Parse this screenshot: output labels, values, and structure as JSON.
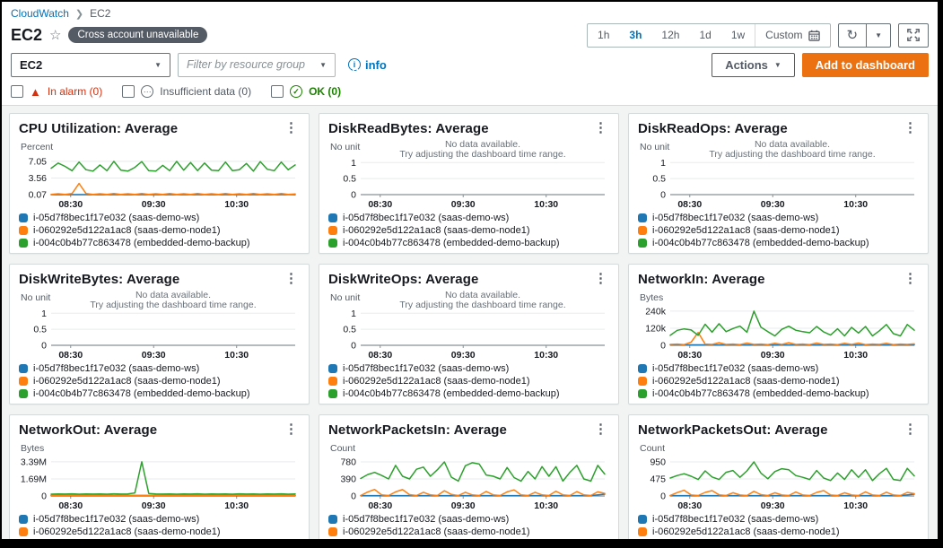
{
  "breadcrumb": {
    "root": "CloudWatch",
    "current": "EC2"
  },
  "header": {
    "title": "EC2",
    "badge": "Cross account unavailable"
  },
  "time_bar": {
    "options": [
      "1h",
      "3h",
      "12h",
      "1d",
      "1w"
    ],
    "selected": "3h",
    "custom_label": "Custom"
  },
  "toolbar": {
    "actions_label": "Actions",
    "add_label": "Add to dashboard"
  },
  "filter_bar": {
    "metric_select": "EC2",
    "resource_placeholder": "Filter by resource group",
    "info_label": "info"
  },
  "alarm_filters": {
    "in_alarm": "In alarm (0)",
    "insufficient": "Insufficient data (0)",
    "ok": "OK (0)"
  },
  "colors": {
    "accent_orange": "#ec7211",
    "link_blue": "#0073bb",
    "alarm_red": "#d13212",
    "ok_green": "#1d8102",
    "series_blue": "#1f77b4",
    "series_orange": "#ff7f0e",
    "series_green": "#2ca02c"
  },
  "legend": [
    {
      "label": "i-05d7f8bec1f17e032 (saas-demo-ws)",
      "color": "#1f77b4"
    },
    {
      "label": "i-060292e5d122a1ac8 (saas-demo-node1)",
      "color": "#ff7f0e"
    },
    {
      "label": "i-004c0b4b77c863478 (embedded-demo-backup)",
      "color": "#2ca02c"
    }
  ],
  "no_data_message": {
    "line1": "No data available.",
    "line2": "Try adjusting the dashboard time range."
  },
  "xaxis": {
    "ticks": [
      "08:30",
      "09:30",
      "10:30"
    ]
  },
  "chart_data": [
    {
      "type": "line",
      "title": "CPU Utilization: Average",
      "unit": "Percent",
      "no_data": false,
      "yticks": [
        {
          "label": "7.05",
          "value": 7.05
        },
        {
          "label": "3.56",
          "value": 3.56
        },
        {
          "label": "0.07",
          "value": 0.07
        }
      ],
      "ymin": 0.07,
      "ymax": 7.6,
      "xticks": [
        "08:30",
        "09:30",
        "10:30"
      ],
      "series": [
        {
          "name": "i-05d7f8bec1f17e032 (saas-demo-ws)",
          "color": "#1f77b4",
          "values": [
            0.07,
            0.07
          ]
        },
        {
          "name": "i-060292e5d122a1ac8 (saas-demo-node1)",
          "color": "#ff7f0e",
          "values": [
            0.1,
            0.25,
            0.1,
            0.3,
            2.4,
            0.3,
            0.1,
            0.25,
            0.1,
            0.3,
            0.1,
            0.25,
            0.1,
            0.3,
            0.1,
            0.25,
            0.1,
            0.3,
            0.1,
            0.25,
            0.1,
            0.3,
            0.1,
            0.25,
            0.1,
            0.3,
            0.1,
            0.25,
            0.1,
            0.3,
            0.1,
            0.25,
            0.1,
            0.3,
            0.1,
            0.2
          ]
        },
        {
          "name": "i-004c0b4b77c863478 (embedded-demo-backup)",
          "color": "#2ca02c",
          "values": [
            5.6,
            6.7,
            6.0,
            5.1,
            6.9,
            5.3,
            5.0,
            6.3,
            5.1,
            7.05,
            5.2,
            5.0,
            5.8,
            7.0,
            5.1,
            5.0,
            6.2,
            5.1,
            7.05,
            5.2,
            6.8,
            5.1,
            6.7,
            5.2,
            5.1,
            6.9,
            5.1,
            5.3,
            6.6,
            5.0,
            7.0,
            5.4,
            5.1,
            6.9,
            5.3,
            6.3
          ]
        }
      ]
    },
    {
      "type": "line",
      "title": "DiskReadBytes: Average",
      "unit": "No unit",
      "no_data": true,
      "yticks": [
        {
          "label": "1",
          "value": 1
        },
        {
          "label": "0.5",
          "value": 0.5
        },
        {
          "label": "0",
          "value": 0
        }
      ],
      "ymin": 0,
      "ymax": 1.12,
      "xticks": [
        "08:30",
        "09:30",
        "10:30"
      ],
      "series": []
    },
    {
      "type": "line",
      "title": "DiskReadOps: Average",
      "unit": "No unit",
      "no_data": true,
      "yticks": [
        {
          "label": "1",
          "value": 1
        },
        {
          "label": "0.5",
          "value": 0.5
        },
        {
          "label": "0",
          "value": 0
        }
      ],
      "ymin": 0,
      "ymax": 1.12,
      "xticks": [
        "08:30",
        "09:30",
        "10:30"
      ],
      "series": []
    },
    {
      "type": "line",
      "title": "DiskWriteBytes: Average",
      "unit": "No unit",
      "no_data": true,
      "yticks": [
        {
          "label": "1",
          "value": 1
        },
        {
          "label": "0.5",
          "value": 0.5
        },
        {
          "label": "0",
          "value": 0
        }
      ],
      "ymin": 0,
      "ymax": 1.12,
      "xticks": [
        "08:30",
        "09:30",
        "10:30"
      ],
      "series": []
    },
    {
      "type": "line",
      "title": "DiskWriteOps: Average",
      "unit": "No unit",
      "no_data": true,
      "yticks": [
        {
          "label": "1",
          "value": 1
        },
        {
          "label": "0.5",
          "value": 0.5
        },
        {
          "label": "0",
          "value": 0
        }
      ],
      "ymin": 0,
      "ymax": 1.12,
      "xticks": [
        "08:30",
        "09:30",
        "10:30"
      ],
      "series": []
    },
    {
      "type": "line",
      "title": "NetworkIn: Average",
      "unit": "Bytes",
      "no_data": false,
      "yticks": [
        {
          "label": "240k",
          "value": 240
        },
        {
          "label": "120k",
          "value": 120
        },
        {
          "label": "0",
          "value": 0
        }
      ],
      "ymin": 0,
      "ymax": 252,
      "xticks": [
        "08:30",
        "09:30",
        "10:30"
      ],
      "series": [
        {
          "name": "i-05d7f8bec1f17e032 (saas-demo-ws)",
          "color": "#1f77b4",
          "values": [
            3,
            3
          ]
        },
        {
          "name": "i-060292e5d122a1ac8 (saas-demo-node1)",
          "color": "#ff7f0e",
          "values": [
            6,
            9,
            5,
            22,
            90,
            9,
            6,
            18,
            6,
            9,
            5,
            16,
            6,
            9,
            5,
            14,
            6,
            18,
            6,
            9,
            5,
            16,
            6,
            9,
            5,
            14,
            6,
            16,
            5,
            9,
            6,
            14,
            5,
            9,
            6,
            10
          ]
        },
        {
          "name": "i-004c0b4b77c863478 (embedded-demo-backup)",
          "color": "#2ca02c",
          "values": [
            70,
            105,
            115,
            108,
            70,
            148,
            92,
            152,
            96,
            118,
            135,
            92,
            240,
            128,
            96,
            66,
            112,
            134,
            106,
            96,
            88,
            132,
            94,
            72,
            116,
            66,
            126,
            86,
            132,
            66,
            102,
            146,
            82,
            66,
            146,
            106
          ]
        }
      ]
    },
    {
      "type": "line",
      "title": "NetworkOut: Average",
      "unit": "Bytes",
      "no_data": false,
      "yticks": [
        {
          "label": "3.39M",
          "value": 3.39
        },
        {
          "label": "1.69M",
          "value": 1.69
        },
        {
          "label": "0",
          "value": 0
        }
      ],
      "ymin": 0,
      "ymax": 3.56,
      "xticks": [
        "08:30",
        "09:30",
        "10:30"
      ],
      "series": [
        {
          "name": "i-05d7f8bec1f17e032 (saas-demo-ws)",
          "color": "#1f77b4",
          "values": [
            0.03,
            0.03
          ]
        },
        {
          "name": "i-060292e5d122a1ac8 (saas-demo-node1)",
          "color": "#ff7f0e",
          "values": [
            0.06,
            0.06
          ]
        },
        {
          "name": "i-004c0b4b77c863478 (embedded-demo-backup)",
          "color": "#2ca02c",
          "values": [
            0.18,
            0.2,
            0.19,
            0.21,
            0.18,
            0.2,
            0.19,
            0.2,
            0.18,
            0.21,
            0.19,
            0.2,
            0.3,
            3.39,
            0.25,
            0.2,
            0.19,
            0.2,
            0.18,
            0.2,
            0.19,
            0.21,
            0.18,
            0.2,
            0.19,
            0.2,
            0.18,
            0.21,
            0.19,
            0.2,
            0.18,
            0.2,
            0.19,
            0.21,
            0.18,
            0.2
          ]
        }
      ]
    },
    {
      "type": "line",
      "title": "NetworkPacketsIn: Average",
      "unit": "Count",
      "no_data": false,
      "yticks": [
        {
          "label": "780",
          "value": 780
        },
        {
          "label": "390",
          "value": 390
        },
        {
          "label": "0",
          "value": 0
        }
      ],
      "ymin": 0,
      "ymax": 820,
      "xticks": [
        "08:30",
        "09:30",
        "10:30"
      ],
      "series": [
        {
          "name": "i-05d7f8bec1f17e032 (saas-demo-ws)",
          "color": "#1f77b4",
          "values": [
            8,
            8,
            8,
            8,
            8,
            8,
            8,
            8,
            8,
            8,
            8,
            8,
            8,
            8,
            8,
            8,
            8,
            40
          ]
        },
        {
          "name": "i-060292e5d122a1ac8 (saas-demo-node1)",
          "color": "#ff7f0e",
          "values": [
            10,
            90,
            150,
            25,
            10,
            95,
            145,
            30,
            10,
            85,
            25,
            10,
            120,
            35,
            10,
            85,
            25,
            10,
            105,
            25,
            10,
            95,
            140,
            25,
            10,
            85,
            25,
            10,
            110,
            25,
            10,
            100,
            25,
            10,
            95,
            60
          ]
        },
        {
          "name": "i-004c0b4b77c863478 (embedded-demo-backup)",
          "color": "#2ca02c",
          "values": [
            400,
            490,
            540,
            470,
            390,
            700,
            450,
            390,
            610,
            660,
            450,
            600,
            780,
            430,
            340,
            690,
            760,
            730,
            480,
            450,
            390,
            650,
            420,
            340,
            560,
            390,
            670,
            450,
            670,
            340,
            540,
            700,
            390,
            340,
            700,
            500
          ]
        }
      ]
    },
    {
      "type": "line",
      "title": "NetworkPacketsOut: Average",
      "unit": "Count",
      "no_data": false,
      "yticks": [
        {
          "label": "950",
          "value": 950
        },
        {
          "label": "475",
          "value": 475
        },
        {
          "label": "0",
          "value": 0
        }
      ],
      "ymin": 0,
      "ymax": 1000,
      "xticks": [
        "08:30",
        "09:30",
        "10:30"
      ],
      "series": [
        {
          "name": "i-05d7f8bec1f17e032 (saas-demo-ws)",
          "color": "#1f77b4",
          "values": [
            10,
            10,
            10,
            10,
            10,
            10,
            10,
            10,
            10,
            10,
            10,
            10,
            10,
            10,
            10,
            10,
            10,
            50
          ]
        },
        {
          "name": "i-060292e5d122a1ac8 (saas-demo-node1)",
          "color": "#ff7f0e",
          "values": [
            12,
            95,
            160,
            28,
            12,
            100,
            150,
            32,
            12,
            90,
            28,
            12,
            130,
            38,
            12,
            90,
            28,
            12,
            110,
            28,
            12,
            100,
            150,
            28,
            12,
            90,
            28,
            12,
            115,
            28,
            12,
            105,
            28,
            12,
            100,
            65
          ]
        },
        {
          "name": "i-004c0b4b77c863478 (embedded-demo-backup)",
          "color": "#2ca02c",
          "values": [
            500,
            570,
            620,
            550,
            460,
            700,
            530,
            460,
            660,
            710,
            520,
            700,
            950,
            640,
            480,
            680,
            760,
            730,
            570,
            520,
            460,
            710,
            500,
            430,
            640,
            460,
            730,
            520,
            730,
            430,
            620,
            770,
            460,
            430,
            770,
            560
          ]
        }
      ]
    }
  ]
}
